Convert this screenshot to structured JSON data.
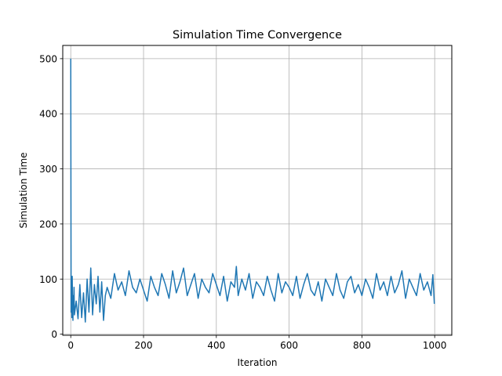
{
  "chart_data": {
    "type": "line",
    "title": "Simulation Time Convergence",
    "xlabel": "Iteration",
    "ylabel": "Simulation Time",
    "xlim": [
      -22,
      1047
    ],
    "ylim": [
      -2,
      524
    ],
    "x_ticks": [
      0,
      200,
      400,
      600,
      800,
      1000
    ],
    "y_ticks": [
      0,
      100,
      200,
      300,
      400,
      500
    ],
    "grid": true,
    "color": "#1f77b4",
    "series": [
      {
        "x": [
          0,
          1,
          2,
          3,
          4,
          5,
          6,
          7,
          8,
          9,
          10,
          15,
          20,
          25,
          30,
          35,
          40,
          45,
          50,
          55,
          60,
          65,
          70,
          75,
          80,
          85,
          90,
          95,
          100,
          110,
          120,
          130,
          140,
          150,
          160,
          170,
          180,
          190,
          200,
          210,
          220,
          230,
          240,
          250,
          260,
          270,
          280,
          290,
          300,
          310,
          320,
          330,
          340,
          350,
          360,
          370,
          380,
          390,
          400,
          410,
          420,
          430,
          440,
          450,
          455,
          460,
          470,
          480,
          490,
          500,
          510,
          520,
          530,
          540,
          550,
          560,
          570,
          580,
          590,
          600,
          610,
          620,
          630,
          640,
          650,
          660,
          670,
          680,
          690,
          700,
          710,
          720,
          730,
          740,
          750,
          760,
          770,
          780,
          790,
          800,
          810,
          820,
          830,
          840,
          850,
          860,
          870,
          880,
          890,
          900,
          910,
          920,
          930,
          940,
          950,
          960,
          970,
          980,
          990,
          995,
          999
        ],
        "y": [
          500,
          40,
          75,
          30,
          105,
          55,
          25,
          70,
          45,
          85,
          35,
          60,
          28,
          90,
          30,
          75,
          22,
          100,
          40,
          120,
          35,
          90,
          55,
          105,
          40,
          95,
          25,
          70,
          85,
          65,
          110,
          80,
          95,
          70,
          115,
          85,
          75,
          100,
          80,
          60,
          105,
          85,
          70,
          110,
          90,
          65,
          115,
          75,
          95,
          120,
          70,
          90,
          110,
          65,
          100,
          85,
          75,
          110,
          90,
          70,
          105,
          60,
          95,
          85,
          123,
          70,
          100,
          80,
          110,
          65,
          95,
          85,
          70,
          105,
          80,
          60,
          110,
          75,
          95,
          85,
          70,
          105,
          65,
          90,
          110,
          80,
          70,
          95,
          60,
          100,
          85,
          70,
          110,
          80,
          65,
          95,
          105,
          75,
          90,
          70,
          100,
          85,
          65,
          110,
          80,
          95,
          70,
          105,
          75,
          90,
          115,
          65,
          100,
          85,
          70,
          110,
          80,
          95,
          70,
          108,
          55
        ]
      }
    ]
  }
}
